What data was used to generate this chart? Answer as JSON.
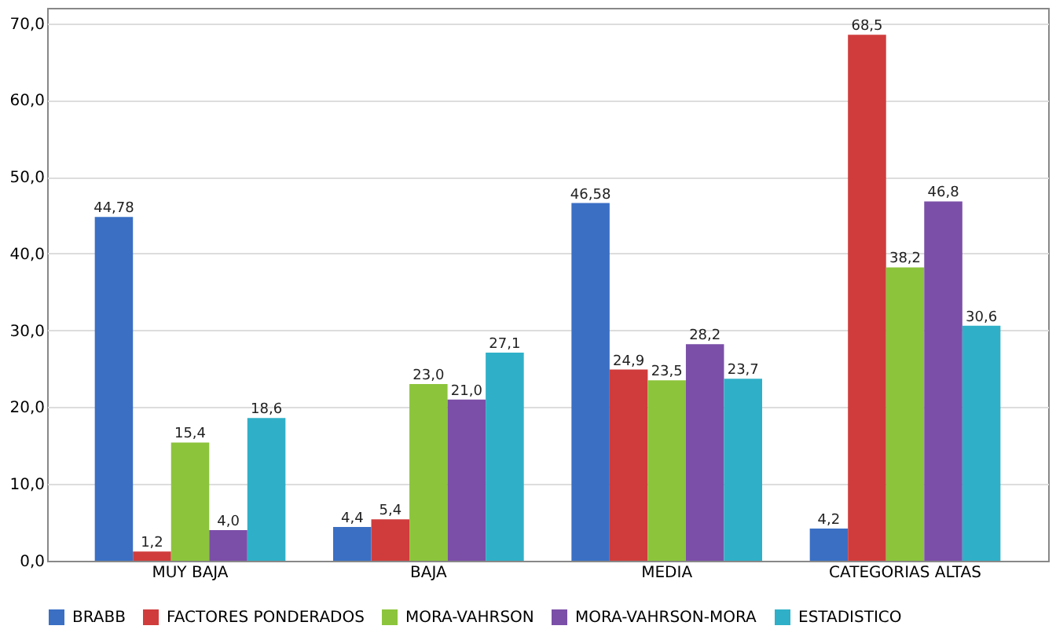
{
  "chart_data": {
    "type": "bar",
    "categories": [
      "MUY BAJA",
      "BAJA",
      "MEDIA",
      "CATEGORIAS ALTAS"
    ],
    "series": [
      {
        "name": "BRABB",
        "color": "#3a6fc4",
        "values": [
          44.78,
          4.4,
          46.58,
          4.2
        ],
        "value_labels": [
          "44,78",
          "4,4",
          "46,58",
          "4,2"
        ]
      },
      {
        "name": "FACTORES PONDERADOS",
        "color": "#d03c3c",
        "values": [
          1.2,
          5.4,
          24.9,
          68.5
        ],
        "value_labels": [
          "1,2",
          "5,4",
          "24,9",
          "68,5"
        ]
      },
      {
        "name": "MORA-VAHRSON",
        "color": "#8cc43c",
        "values": [
          15.4,
          23.0,
          23.5,
          38.2
        ],
        "value_labels": [
          "15,4",
          "23,0",
          "23,5",
          "38,2"
        ]
      },
      {
        "name": "MORA-VAHRSON-MORA",
        "color": "#7b4fa8",
        "values": [
          4.0,
          21.0,
          28.2,
          46.8
        ],
        "value_labels": [
          "4,0",
          "21,0",
          "28,2",
          "46,8"
        ]
      },
      {
        "name": "ESTADISTICO",
        "color": "#2fb0c8",
        "values": [
          18.6,
          27.1,
          23.7,
          30.6
        ],
        "value_labels": [
          "18,6",
          "27,1",
          "23,7",
          "30,6"
        ]
      }
    ],
    "ylim": [
      0,
      72
    ],
    "yticks": [
      {
        "value": 0,
        "label": "0,0"
      },
      {
        "value": 10,
        "label": "10,0"
      },
      {
        "value": 20,
        "label": "20,0"
      },
      {
        "value": 30,
        "label": "30,0"
      },
      {
        "value": 40,
        "label": "40,0"
      },
      {
        "value": 50,
        "label": "50,0"
      },
      {
        "value": 60,
        "label": "60,0"
      },
      {
        "value": 70,
        "label": "70,0"
      }
    ],
    "grid": "y",
    "legend": "bottom"
  }
}
